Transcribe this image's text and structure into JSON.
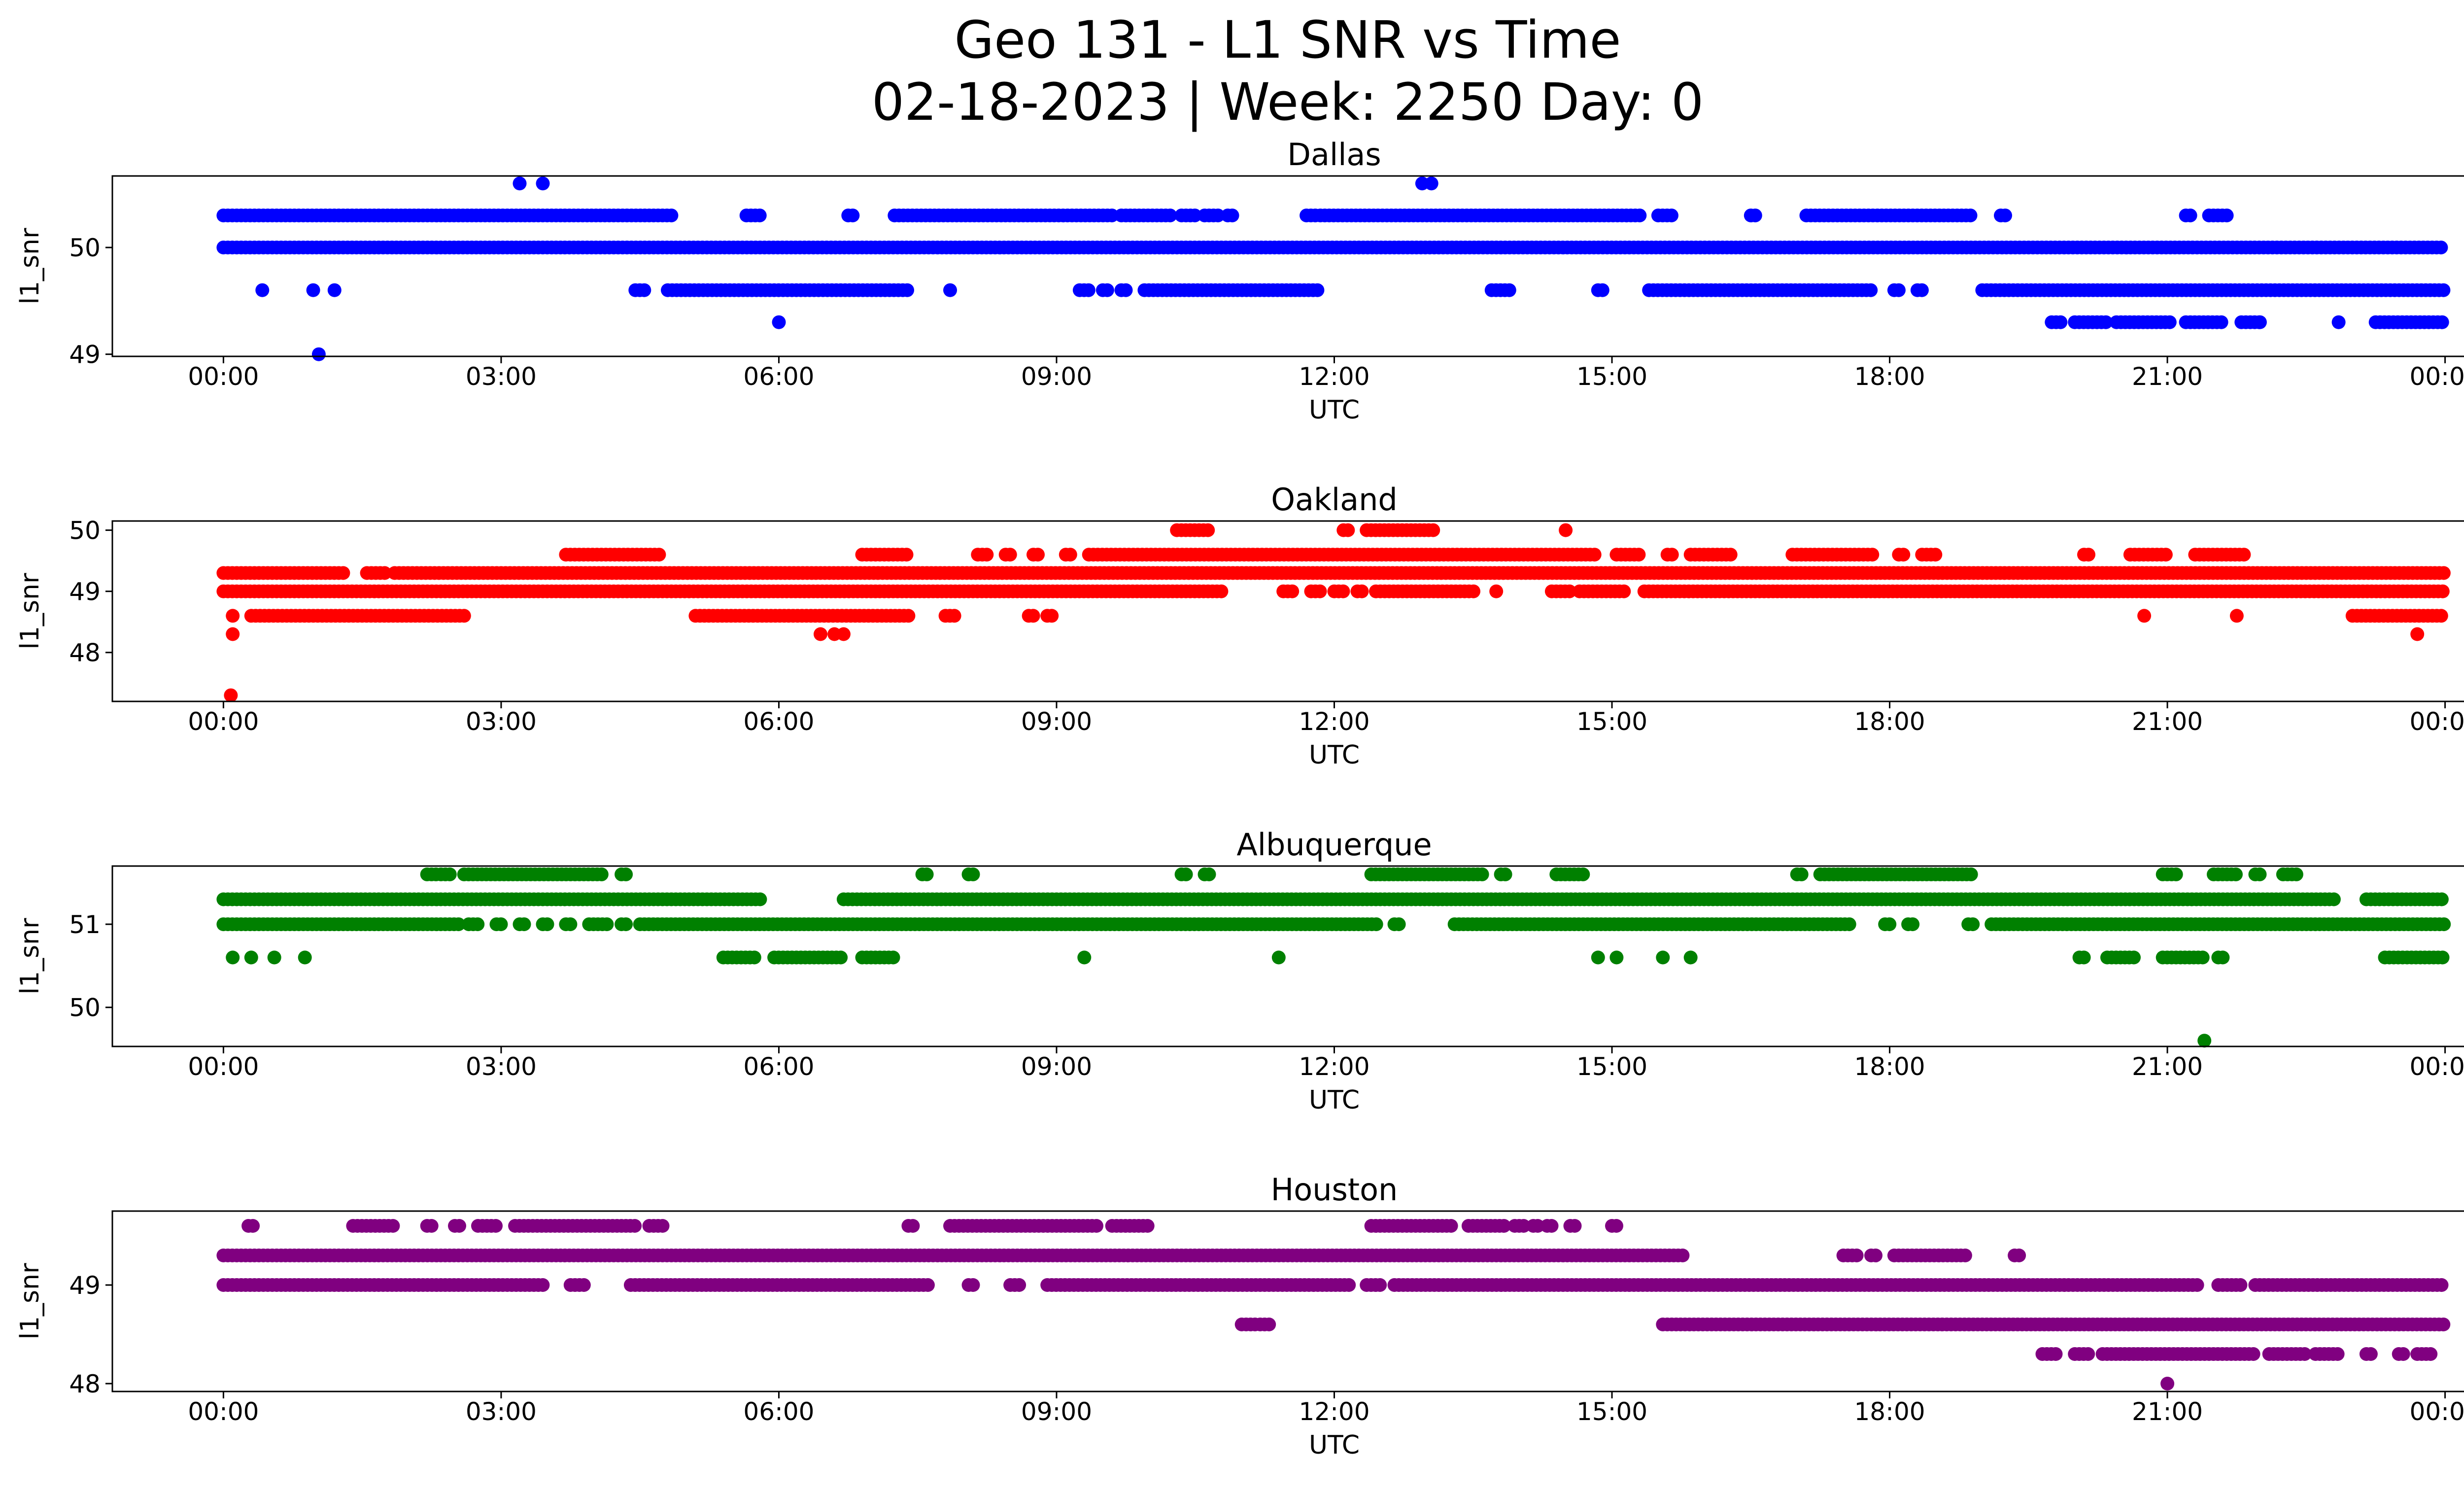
{
  "figure": {
    "title_line1": "Geo 131 - L1 SNR vs Time",
    "title_line2": "02-18-2023 | Week: 2250 Day: 0"
  },
  "chart_data": [
    {
      "type": "scatter",
      "title": "Dallas",
      "xlabel": "UTC",
      "ylabel": "l1_snr",
      "color": "#0000ff",
      "xticks": [
        "00:00",
        "03:00",
        "06:00",
        "09:00",
        "12:00",
        "15:00",
        "18:00",
        "21:00",
        "00:00"
      ],
      "xlim_hours": [
        -1.2,
        25.2
      ],
      "ylim": [
        48.98,
        50.67
      ],
      "yticks": [
        49,
        50
      ],
      "bands": [
        {
          "y": 50.3,
          "ranges": [
            [
              0.0,
              4.85
            ],
            [
              5.65,
              5.8
            ],
            [
              6.75,
              6.8
            ],
            [
              7.25,
              9.6
            ],
            [
              9.7,
              10.25
            ],
            [
              10.35,
              10.5
            ],
            [
              10.6,
              10.75
            ],
            [
              10.85,
              10.9
            ],
            [
              11.7,
              11.8
            ],
            [
              11.85,
              15.3
            ],
            [
              15.5,
              15.65
            ],
            [
              16.5,
              16.55
            ],
            [
              17.1,
              18.9
            ],
            [
              19.2,
              19.25
            ],
            [
              21.2,
              21.25
            ],
            [
              21.45,
              21.65
            ]
          ]
        },
        {
          "y": 50.0,
          "ranges": [
            [
              0.0,
              24.0
            ]
          ]
        },
        {
          "y": 49.6,
          "ranges": [
            [
              4.45,
              4.55
            ],
            [
              4.8,
              7.4
            ],
            [
              9.25,
              9.35
            ],
            [
              9.5,
              9.55
            ],
            [
              9.7,
              9.75
            ],
            [
              9.95,
              11.85
            ],
            [
              13.7,
              13.9
            ],
            [
              14.85,
              14.9
            ],
            [
              15.4,
              17.8
            ],
            [
              18.05,
              18.1
            ],
            [
              18.3,
              18.35
            ],
            [
              19.0,
              24.0
            ]
          ]
        },
        {
          "y": 49.3,
          "ranges": [
            [
              19.75,
              19.85
            ],
            [
              20.0,
              20.35
            ],
            [
              20.45,
              21.05
            ],
            [
              21.2,
              21.6
            ],
            [
              21.8,
              22.0
            ],
            [
              23.25,
              24.0
            ]
          ]
        }
      ],
      "points": [
        {
          "x": 0.42,
          "y": 49.6
        },
        {
          "x": 0.97,
          "y": 49.6
        },
        {
          "x": 1.2,
          "y": 49.6
        },
        {
          "x": 1.03,
          "y": 49.0
        },
        {
          "x": 3.2,
          "y": 50.6
        },
        {
          "x": 3.45,
          "y": 50.6
        },
        {
          "x": 12.95,
          "y": 50.6
        },
        {
          "x": 13.05,
          "y": 50.6
        },
        {
          "x": 6.0,
          "y": 49.3
        },
        {
          "x": 7.85,
          "y": 49.6
        },
        {
          "x": 22.0,
          "y": 49.3
        },
        {
          "x": 22.85,
          "y": 49.3
        }
      ]
    },
    {
      "type": "scatter",
      "title": "Oakland",
      "xlabel": "UTC",
      "ylabel": "l1_snr",
      "color": "#ff0000",
      "xticks": [
        "00:00",
        "03:00",
        "06:00",
        "09:00",
        "12:00",
        "15:00",
        "18:00",
        "21:00",
        "00:00"
      ],
      "xlim_hours": [
        -1.2,
        25.2
      ],
      "ylim": [
        47.2,
        50.15
      ],
      "yticks": [
        48,
        49,
        50
      ],
      "bands": [
        {
          "y": 50.0,
          "ranges": [
            [
              10.3,
              10.65
            ],
            [
              12.1,
              12.15
            ],
            [
              12.35,
              13.1
            ]
          ]
        },
        {
          "y": 49.6,
          "ranges": [
            [
              3.7,
              4.75
            ],
            [
              6.9,
              7.4
            ],
            [
              8.15,
              8.25
            ],
            [
              8.45,
              8.5
            ],
            [
              8.75,
              8.8
            ],
            [
              9.1,
              9.15
            ],
            [
              9.35,
              14.85
            ],
            [
              15.05,
              15.3
            ],
            [
              15.6,
              15.65
            ],
            [
              15.85,
              16.3
            ],
            [
              16.95,
              17.85
            ],
            [
              18.1,
              18.15
            ],
            [
              18.35,
              18.5
            ],
            [
              20.1,
              20.15
            ],
            [
              20.6,
              21.0
            ],
            [
              21.3,
              21.85
            ]
          ]
        },
        {
          "y": 49.3,
          "ranges": [
            [
              0.0,
              1.3
            ],
            [
              1.55,
              1.75
            ],
            [
              1.85,
              24.0
            ]
          ]
        },
        {
          "y": 49.0,
          "ranges": [
            [
              0.0,
              10.8
            ],
            [
              11.45,
              11.55
            ],
            [
              11.75,
              11.85
            ],
            [
              12.0,
              12.1
            ],
            [
              12.25,
              12.3
            ],
            [
              12.45,
              13.55
            ],
            [
              14.35,
              14.55
            ],
            [
              14.65,
              15.15
            ],
            [
              15.35,
              24.0
            ]
          ]
        },
        {
          "y": 48.6,
          "ranges": [
            [
              0.3,
              2.6
            ],
            [
              5.1,
              7.4
            ],
            [
              7.8,
              7.9
            ],
            [
              8.7,
              8.75
            ],
            [
              8.9,
              8.95
            ],
            [
              23.0,
              24.0
            ]
          ]
        }
      ],
      "points": [
        {
          "x": 0.1,
          "y": 48.6
        },
        {
          "x": 0.1,
          "y": 48.3
        },
        {
          "x": 0.08,
          "y": 47.3
        },
        {
          "x": 6.45,
          "y": 48.3
        },
        {
          "x": 6.6,
          "y": 48.3
        },
        {
          "x": 6.7,
          "y": 48.3
        },
        {
          "x": 13.75,
          "y": 49.0
        },
        {
          "x": 14.5,
          "y": 50.0
        },
        {
          "x": 20.75,
          "y": 48.6
        },
        {
          "x": 21.75,
          "y": 48.6
        },
        {
          "x": 23.7,
          "y": 48.3
        }
      ]
    },
    {
      "type": "scatter",
      "title": "Albuquerque",
      "xlabel": "UTC",
      "ylabel": "l1_snr",
      "color": "#008000",
      "xticks": [
        "00:00",
        "03:00",
        "06:00",
        "09:00",
        "12:00",
        "15:00",
        "18:00",
        "21:00",
        "00:00"
      ],
      "xlim_hours": [
        -1.2,
        25.2
      ],
      "ylim": [
        49.53,
        51.7
      ],
      "yticks": [
        50,
        51
      ],
      "bands": [
        {
          "y": 51.6,
          "ranges": [
            [
              2.2,
              2.3
            ],
            [
              2.35,
              2.45
            ],
            [
              2.6,
              4.1
            ],
            [
              4.3,
              4.35
            ],
            [
              7.55,
              7.6
            ],
            [
              8.05,
              8.1
            ],
            [
              10.35,
              10.4
            ],
            [
              10.6,
              10.65
            ],
            [
              12.4,
              13.6
            ],
            [
              13.8,
              13.85
            ],
            [
              14.4,
              14.7
            ],
            [
              17.0,
              17.05
            ],
            [
              17.25,
              18.9
            ],
            [
              20.95,
              21.1
            ],
            [
              21.5,
              21.75
            ],
            [
              21.95,
              22.0
            ],
            [
              22.25,
              22.4
            ]
          ]
        },
        {
          "y": 51.3,
          "ranges": [
            [
              0.0,
              5.8
            ],
            [
              6.7,
              22.8
            ],
            [
              23.15,
              24.0
            ]
          ]
        },
        {
          "y": 51.0,
          "ranges": [
            [
              0.0,
              2.55
            ],
            [
              2.65,
              2.75
            ],
            [
              2.95,
              3.0
            ],
            [
              3.2,
              3.25
            ],
            [
              3.45,
              3.5
            ],
            [
              3.7,
              3.75
            ],
            [
              3.95,
              4.15
            ],
            [
              4.3,
              4.35
            ],
            [
              4.5,
              12.5
            ],
            [
              12.65,
              12.7
            ],
            [
              13.3,
              17.6
            ],
            [
              17.95,
              18.0
            ],
            [
              18.2,
              18.25
            ],
            [
              18.85,
              18.9
            ],
            [
              19.1,
              24.0
            ]
          ]
        },
        {
          "y": 50.6,
          "ranges": [
            [
              5.4,
              5.75
            ],
            [
              5.95,
              6.7
            ],
            [
              6.9,
              7.25
            ],
            [
              20.05,
              20.1
            ],
            [
              20.35,
              20.65
            ],
            [
              20.95,
              21.4
            ],
            [
              21.55,
              21.6
            ],
            [
              23.35,
              24.0
            ]
          ]
        }
      ],
      "points": [
        {
          "x": 0.1,
          "y": 50.6
        },
        {
          "x": 0.3,
          "y": 50.6
        },
        {
          "x": 0.55,
          "y": 50.6
        },
        {
          "x": 0.88,
          "y": 50.6
        },
        {
          "x": 9.3,
          "y": 50.6
        },
        {
          "x": 11.4,
          "y": 50.6
        },
        {
          "x": 14.85,
          "y": 50.6
        },
        {
          "x": 15.05,
          "y": 50.6
        },
        {
          "x": 15.55,
          "y": 50.6
        },
        {
          "x": 15.85,
          "y": 50.6
        },
        {
          "x": 21.4,
          "y": 49.6
        }
      ]
    },
    {
      "type": "scatter",
      "title": "Houston",
      "xlabel": "UTC",
      "ylabel": "l1_snr",
      "color": "#800080",
      "xticks": [
        "00:00",
        "03:00",
        "06:00",
        "09:00",
        "12:00",
        "15:00",
        "18:00",
        "21:00",
        "00:00"
      ],
      "xlim_hours": [
        -1.2,
        25.2
      ],
      "ylim": [
        47.92,
        49.75
      ],
      "yticks": [
        48,
        49
      ],
      "bands": [
        {
          "y": 49.6,
          "ranges": [
            [
              0.27,
              0.32
            ],
            [
              1.4,
              1.85
            ],
            [
              2.2,
              2.25
            ],
            [
              2.5,
              2.55
            ],
            [
              2.75,
              2.95
            ],
            [
              3.15,
              4.45
            ],
            [
              4.6,
              4.75
            ],
            [
              7.4,
              7.45
            ],
            [
              7.85,
              9.45
            ],
            [
              9.6,
              10.0
            ],
            [
              12.4,
              13.3
            ],
            [
              13.45,
              13.85
            ],
            [
              13.95,
              14.05
            ],
            [
              14.15,
              14.2
            ],
            [
              14.3,
              14.35
            ],
            [
              14.55,
              14.6
            ],
            [
              15.0,
              15.05
            ]
          ]
        },
        {
          "y": 49.3,
          "ranges": [
            [
              0.0,
              15.8
            ],
            [
              17.5,
              17.65
            ],
            [
              17.8,
              17.85
            ],
            [
              18.05,
              18.85
            ],
            [
              19.35,
              19.4
            ]
          ]
        },
        {
          "y": 49.0,
          "ranges": [
            [
              0.0,
              3.45
            ],
            [
              3.75,
              3.9
            ],
            [
              4.4,
              7.65
            ],
            [
              8.05,
              8.1
            ],
            [
              8.5,
              8.6
            ],
            [
              8.9,
              12.2
            ],
            [
              12.35,
              12.5
            ],
            [
              12.65,
              21.35
            ],
            [
              21.55,
              21.8
            ],
            [
              21.95,
              24.0
            ]
          ]
        },
        {
          "y": 48.6,
          "ranges": [
            [
              11.0,
              11.15
            ],
            [
              11.2,
              11.3
            ],
            [
              15.55,
              24.0
            ]
          ]
        },
        {
          "y": 48.3,
          "ranges": [
            [
              19.65,
              19.8
            ],
            [
              20.0,
              20.15
            ],
            [
              20.3,
              21.95
            ],
            [
              22.1,
              22.5
            ],
            [
              22.6,
              22.85
            ],
            [
              23.15,
              23.2
            ],
            [
              23.5,
              23.55
            ],
            [
              23.7,
              23.85
            ]
          ]
        }
      ],
      "points": [
        {
          "x": 21.0,
          "y": 48.0
        }
      ]
    }
  ]
}
